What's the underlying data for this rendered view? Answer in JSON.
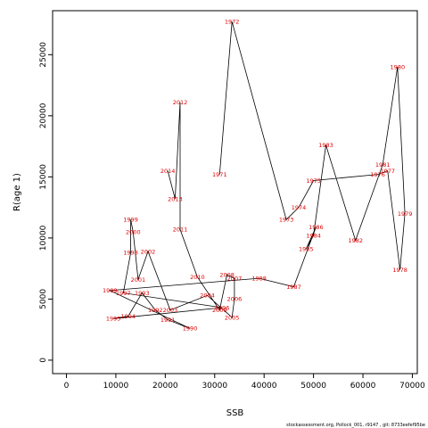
{
  "chart_data": {
    "type": "line",
    "xlabel": "SSB",
    "ylabel": "R(age 1)",
    "xlim": [
      -2800,
      71000
    ],
    "ylim": [
      -1100,
      28600
    ],
    "x_ticks": [
      0,
      10000,
      20000,
      30000,
      40000,
      50000,
      60000,
      70000
    ],
    "y_ticks": [
      0,
      5000,
      10000,
      15000,
      20000,
      25000
    ],
    "line_color": "#000000",
    "label_color": "#e00000",
    "points": [
      {
        "year": "1971",
        "ssb": 31000,
        "r": 15200
      },
      {
        "year": "1972",
        "ssb": 33500,
        "r": 27700
      },
      {
        "year": "1973",
        "ssb": 44500,
        "r": 11500
      },
      {
        "year": "1974",
        "ssb": 47000,
        "r": 12500
      },
      {
        "year": "1975",
        "ssb": 50000,
        "r": 14700
      },
      {
        "year": "1976",
        "ssb": 63000,
        "r": 15200
      },
      {
        "year": "1977",
        "ssb": 65000,
        "r": 15500
      },
      {
        "year": "1978",
        "ssb": 67500,
        "r": 7400
      },
      {
        "year": "1979",
        "ssb": 68500,
        "r": 12000
      },
      {
        "year": "1980",
        "ssb": 67000,
        "r": 24000
      },
      {
        "year": "1981",
        "ssb": 64000,
        "r": 16000
      },
      {
        "year": "1982",
        "ssb": 58500,
        "r": 9800
      },
      {
        "year": "1983",
        "ssb": 52500,
        "r": 17600
      },
      {
        "year": "1984",
        "ssb": 50000,
        "r": 10200
      },
      {
        "year": "1985",
        "ssb": 48500,
        "r": 9100
      },
      {
        "year": "1986",
        "ssb": 50500,
        "r": 10900
      },
      {
        "year": "1987",
        "ssb": 46000,
        "r": 6000
      },
      {
        "year": "1988",
        "ssb": 39000,
        "r": 6700
      },
      {
        "year": "1989",
        "ssb": 8800,
        "r": 5700
      },
      {
        "year": "1990",
        "ssb": 25000,
        "r": 2600
      },
      {
        "year": "1991",
        "ssb": 20500,
        "r": 3300
      },
      {
        "year": "1992",
        "ssb": 18000,
        "r": 4100
      },
      {
        "year": "1993",
        "ssb": 15300,
        "r": 5500
      },
      {
        "year": "1994",
        "ssb": 12500,
        "r": 3600
      },
      {
        "year": "1995",
        "ssb": 9500,
        "r": 3400
      },
      {
        "year": "1996",
        "ssb": 31500,
        "r": 4300
      },
      {
        "year": "1997",
        "ssb": 11500,
        "r": 5500
      },
      {
        "year": "1998",
        "ssb": 13000,
        "r": 8800
      },
      {
        "year": "1999",
        "ssb": 13000,
        "r": 11500
      },
      {
        "year": "2000",
        "ssb": 13500,
        "r": 10500
      },
      {
        "year": "2001",
        "ssb": 14500,
        "r": 6600
      },
      {
        "year": "2002",
        "ssb": 16500,
        "r": 8900
      },
      {
        "year": "2003",
        "ssb": 21000,
        "r": 4100
      },
      {
        "year": "2004",
        "ssb": 28500,
        "r": 5300
      },
      {
        "year": "2005",
        "ssb": 33500,
        "r": 3500
      },
      {
        "year": "2006",
        "ssb": 34000,
        "r": 5000
      },
      {
        "year": "2007",
        "ssb": 34000,
        "r": 6700
      },
      {
        "year": "2008",
        "ssb": 32500,
        "r": 7000
      },
      {
        "year": "2009",
        "ssb": 31000,
        "r": 4100
      },
      {
        "year": "2010",
        "ssb": 26500,
        "r": 6800
      },
      {
        "year": "2011",
        "ssb": 23000,
        "r": 10700
      },
      {
        "year": "2012",
        "ssb": 23000,
        "r": 21100
      },
      {
        "year": "2013",
        "ssb": 22000,
        "r": 13200
      },
      {
        "year": "2014",
        "ssb": 20500,
        "r": 15500
      }
    ],
    "footer_text": "stockassessment.org, Pollock_001, r9147 , git: 8733eefef95be"
  }
}
